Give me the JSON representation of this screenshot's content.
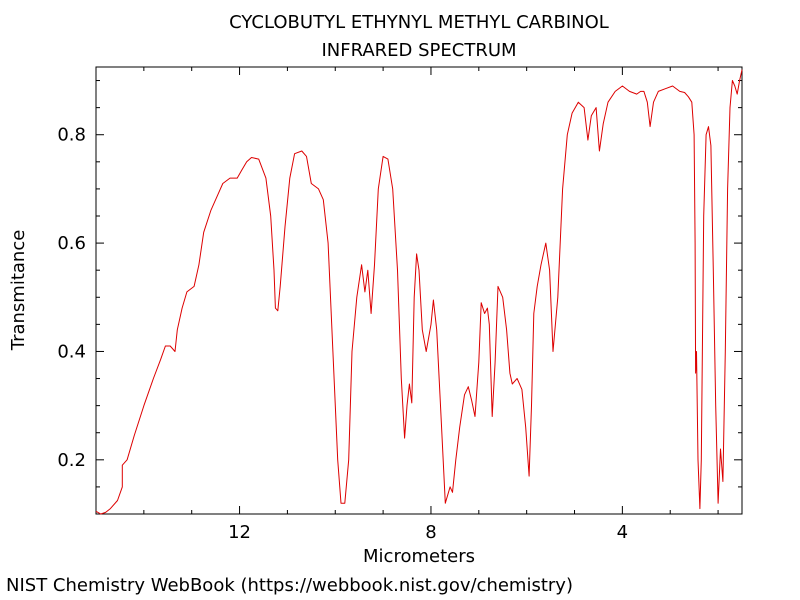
{
  "chart_data": {
    "type": "line",
    "title_lines": [
      "CYCLOBUTYL ETHYNYL METHYL CARBINOL",
      "INFRARED SPECTRUM"
    ],
    "xlabel": "Micrometers",
    "ylabel": "Transmitance",
    "xlim": [
      15.0,
      1.5
    ],
    "ylim": [
      0.1,
      0.925
    ],
    "x_ticks": [
      12,
      8,
      4
    ],
    "x_tick_labels": [
      "12",
      "8",
      "4"
    ],
    "y_ticks": [
      0.2,
      0.4,
      0.6,
      0.8
    ],
    "y_tick_labels": [
      "0.2",
      "0.4",
      "0.6",
      "0.8"
    ],
    "grid": false,
    "series": [
      {
        "color": "#dd0000",
        "points": [
          [
            15.0,
            0.105
          ],
          [
            14.9,
            0.1
          ],
          [
            14.8,
            0.103
          ],
          [
            14.7,
            0.11
          ],
          [
            14.55,
            0.125
          ],
          [
            14.45,
            0.15
          ],
          [
            14.45,
            0.19
          ],
          [
            14.35,
            0.2
          ],
          [
            14.2,
            0.245
          ],
          [
            14.0,
            0.3
          ],
          [
            13.8,
            0.35
          ],
          [
            13.65,
            0.385
          ],
          [
            13.55,
            0.41
          ],
          [
            13.45,
            0.41
          ],
          [
            13.35,
            0.4
          ],
          [
            13.3,
            0.44
          ],
          [
            13.2,
            0.48
          ],
          [
            13.1,
            0.51
          ],
          [
            12.95,
            0.52
          ],
          [
            12.85,
            0.56
          ],
          [
            12.75,
            0.62
          ],
          [
            12.6,
            0.66
          ],
          [
            12.45,
            0.69
          ],
          [
            12.35,
            0.71
          ],
          [
            12.2,
            0.72
          ],
          [
            12.05,
            0.72
          ],
          [
            11.95,
            0.735
          ],
          [
            11.85,
            0.75
          ],
          [
            11.75,
            0.758
          ],
          [
            11.6,
            0.755
          ],
          [
            11.45,
            0.72
          ],
          [
            11.35,
            0.65
          ],
          [
            11.28,
            0.55
          ],
          [
            11.25,
            0.48
          ],
          [
            11.2,
            0.475
          ],
          [
            11.15,
            0.52
          ],
          [
            11.05,
            0.63
          ],
          [
            10.95,
            0.72
          ],
          [
            10.85,
            0.765
          ],
          [
            10.7,
            0.77
          ],
          [
            10.6,
            0.76
          ],
          [
            10.5,
            0.71
          ],
          [
            10.35,
            0.7
          ],
          [
            10.25,
            0.68
          ],
          [
            10.15,
            0.6
          ],
          [
            10.05,
            0.4
          ],
          [
            9.95,
            0.2
          ],
          [
            9.88,
            0.12
          ],
          [
            9.8,
            0.12
          ],
          [
            9.72,
            0.2
          ],
          [
            9.65,
            0.4
          ],
          [
            9.55,
            0.5
          ],
          [
            9.45,
            0.56
          ],
          [
            9.38,
            0.51
          ],
          [
            9.32,
            0.55
          ],
          [
            9.25,
            0.47
          ],
          [
            9.18,
            0.56
          ],
          [
            9.1,
            0.7
          ],
          [
            9.0,
            0.76
          ],
          [
            8.9,
            0.755
          ],
          [
            8.8,
            0.7
          ],
          [
            8.7,
            0.55
          ],
          [
            8.62,
            0.35
          ],
          [
            8.55,
            0.24
          ],
          [
            8.5,
            0.3
          ],
          [
            8.45,
            0.34
          ],
          [
            8.4,
            0.305
          ],
          [
            8.35,
            0.5
          ],
          [
            8.3,
            0.58
          ],
          [
            8.25,
            0.55
          ],
          [
            8.18,
            0.44
          ],
          [
            8.1,
            0.4
          ],
          [
            8.0,
            0.45
          ],
          [
            7.95,
            0.495
          ],
          [
            7.88,
            0.44
          ],
          [
            7.8,
            0.3
          ],
          [
            7.7,
            0.12
          ],
          [
            7.6,
            0.15
          ],
          [
            7.55,
            0.14
          ],
          [
            7.48,
            0.2
          ],
          [
            7.4,
            0.26
          ],
          [
            7.3,
            0.32
          ],
          [
            7.22,
            0.335
          ],
          [
            7.15,
            0.31
          ],
          [
            7.08,
            0.28
          ],
          [
            7.0,
            0.38
          ],
          [
            6.95,
            0.49
          ],
          [
            6.88,
            0.47
          ],
          [
            6.82,
            0.48
          ],
          [
            6.78,
            0.45
          ],
          [
            6.72,
            0.28
          ],
          [
            6.66,
            0.38
          ],
          [
            6.6,
            0.52
          ],
          [
            6.5,
            0.5
          ],
          [
            6.42,
            0.44
          ],
          [
            6.35,
            0.36
          ],
          [
            6.3,
            0.34
          ],
          [
            6.2,
            0.35
          ],
          [
            6.1,
            0.33
          ],
          [
            6.02,
            0.26
          ],
          [
            5.95,
            0.17
          ],
          [
            5.9,
            0.3
          ],
          [
            5.85,
            0.47
          ],
          [
            5.78,
            0.52
          ],
          [
            5.7,
            0.56
          ],
          [
            5.6,
            0.6
          ],
          [
            5.52,
            0.55
          ],
          [
            5.45,
            0.4
          ],
          [
            5.35,
            0.5
          ],
          [
            5.25,
            0.7
          ],
          [
            5.15,
            0.8
          ],
          [
            5.05,
            0.84
          ],
          [
            4.92,
            0.86
          ],
          [
            4.8,
            0.85
          ],
          [
            4.72,
            0.79
          ],
          [
            4.65,
            0.835
          ],
          [
            4.55,
            0.85
          ],
          [
            4.48,
            0.77
          ],
          [
            4.4,
            0.82
          ],
          [
            4.3,
            0.86
          ],
          [
            4.15,
            0.88
          ],
          [
            4.0,
            0.89
          ],
          [
            3.85,
            0.88
          ],
          [
            3.7,
            0.875
          ],
          [
            3.62,
            0.88
          ],
          [
            3.55,
            0.88
          ],
          [
            3.48,
            0.86
          ],
          [
            3.42,
            0.815
          ],
          [
            3.35,
            0.86
          ],
          [
            3.25,
            0.88
          ],
          [
            3.1,
            0.885
          ],
          [
            2.95,
            0.89
          ],
          [
            2.8,
            0.88
          ],
          [
            2.7,
            0.878
          ],
          [
            2.62,
            0.87
          ],
          [
            2.55,
            0.86
          ],
          [
            2.5,
            0.8
          ],
          [
            2.48,
            0.6
          ],
          [
            2.47,
            0.36
          ],
          [
            2.45,
            0.4
          ],
          [
            2.42,
            0.2
          ],
          [
            2.38,
            0.11
          ],
          [
            2.35,
            0.2
          ],
          [
            2.3,
            0.65
          ],
          [
            2.25,
            0.8
          ],
          [
            2.2,
            0.815
          ],
          [
            2.15,
            0.78
          ],
          [
            2.1,
            0.55
          ],
          [
            2.05,
            0.3
          ],
          [
            2.0,
            0.12
          ],
          [
            1.95,
            0.22
          ],
          [
            1.9,
            0.16
          ],
          [
            1.85,
            0.4
          ],
          [
            1.8,
            0.7
          ],
          [
            1.75,
            0.85
          ],
          [
            1.7,
            0.9
          ],
          [
            1.65,
            0.89
          ],
          [
            1.6,
            0.875
          ],
          [
            1.55,
            0.9
          ],
          [
            1.5,
            0.92
          ]
        ]
      }
    ]
  },
  "footer": "NIST Chemistry WebBook (https://webbook.nist.gov/chemistry)"
}
